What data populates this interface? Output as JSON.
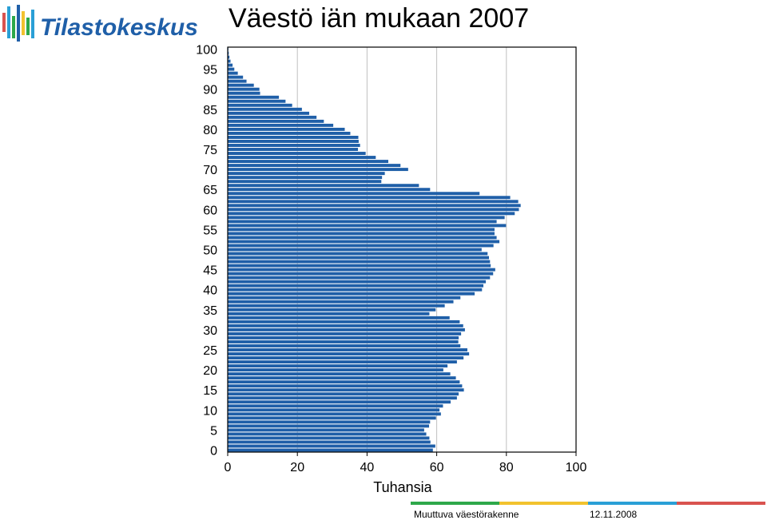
{
  "header": {
    "logo_text": "Tilastokeskus",
    "title": "Väestö iän mukaan 2007"
  },
  "footer": {
    "left": "Muuttuva väestörakenne",
    "date": "12.11.2008",
    "stripe_colors": [
      "#2ea84a",
      "#f2c22e",
      "#2a9fd6",
      "#d9534f"
    ]
  },
  "chart_data": {
    "type": "bar",
    "orientation": "horizontal",
    "title": "Väestö iän mukaan 2007",
    "xlabel": "Tuhansia",
    "ylabel": "",
    "xlim": [
      0,
      100
    ],
    "ylim": [
      0,
      100
    ],
    "xticks": [
      0,
      20,
      40,
      60,
      80,
      100
    ],
    "yticks": [
      0,
      5,
      10,
      15,
      20,
      25,
      30,
      35,
      40,
      45,
      50,
      55,
      60,
      65,
      70,
      75,
      80,
      85,
      90,
      95,
      100
    ],
    "grid": "vertical",
    "bar_color": "#1f5fa8",
    "categories": [
      0,
      1,
      2,
      3,
      4,
      5,
      6,
      7,
      8,
      9,
      10,
      11,
      12,
      13,
      14,
      15,
      16,
      17,
      18,
      19,
      20,
      21,
      22,
      23,
      24,
      25,
      26,
      27,
      28,
      29,
      30,
      31,
      32,
      33,
      34,
      35,
      36,
      37,
      38,
      39,
      40,
      41,
      42,
      43,
      44,
      45,
      46,
      47,
      48,
      49,
      50,
      51,
      52,
      53,
      54,
      55,
      56,
      57,
      58,
      59,
      60,
      61,
      62,
      63,
      64,
      65,
      66,
      67,
      68,
      69,
      70,
      71,
      72,
      73,
      74,
      75,
      76,
      77,
      78,
      79,
      80,
      81,
      82,
      83,
      84,
      85,
      86,
      87,
      88,
      89,
      90,
      91,
      92,
      93,
      94,
      95,
      96,
      97,
      98,
      99,
      100
    ],
    "values": [
      58.9,
      59.6,
      58.2,
      57.9,
      57.0,
      56.4,
      57.8,
      58.1,
      59.8,
      61.2,
      60.8,
      61.8,
      64.0,
      65.8,
      66.3,
      67.8,
      67.3,
      66.6,
      65.5,
      63.9,
      61.9,
      63.1,
      65.8,
      67.7,
      69.3,
      68.8,
      66.8,
      66.2,
      66.3,
      67.0,
      68.1,
      67.6,
      66.6,
      63.7,
      57.9,
      59.7,
      62.3,
      64.8,
      66.8,
      70.9,
      73.0,
      73.4,
      74.1,
      75.3,
      76.2,
      76.8,
      75.5,
      75.3,
      75.0,
      74.6,
      72.9,
      76.3,
      78.0,
      77.2,
      76.6,
      76.6,
      79.9,
      77.2,
      79.5,
      82.4,
      83.6,
      84.1,
      83.4,
      81.1,
      72.3,
      58.1,
      54.9,
      44.1,
      44.3,
      45.1,
      51.8,
      49.6,
      46.1,
      42.5,
      39.6,
      37.4,
      38.0,
      37.6,
      37.5,
      35.2,
      33.6,
      30.3,
      27.6,
      25.5,
      23.4,
      21.3,
      18.5,
      16.6,
      14.7,
      9.3,
      9.1,
      7.5,
      5.4,
      4.4,
      2.9,
      1.9,
      1.4,
      0.8,
      0.5,
      0.3,
      0.2
    ]
  }
}
